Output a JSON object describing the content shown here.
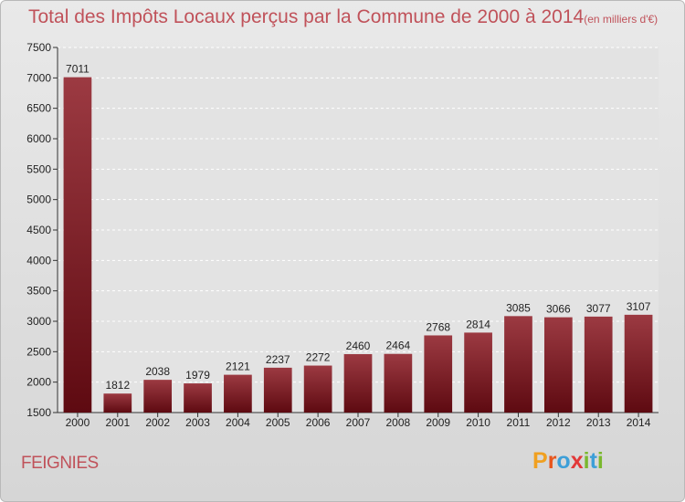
{
  "chart_data": {
    "type": "bar",
    "title": "Total des Impôts Locaux perçus par la Commune de 2000 à 2014",
    "title_unit": "(en milliers d'€)",
    "categories": [
      "2000",
      "2001",
      "2002",
      "2003",
      "2004",
      "2005",
      "2006",
      "2007",
      "2008",
      "2009",
      "2010",
      "2011",
      "2012",
      "2013",
      "2014"
    ],
    "values": [
      7011,
      1812,
      2038,
      1979,
      2121,
      2237,
      2272,
      2460,
      2464,
      2768,
      2814,
      3085,
      3066,
      3077,
      3107
    ],
    "value_labels": [
      "7011",
      "1812",
      "2038",
      "1979",
      "2121",
      "2237",
      "2272",
      "2460",
      "2464",
      "2768",
      "2814",
      "3085",
      "3066",
      "3077",
      "3107"
    ],
    "xlabel": "",
    "ylabel": "",
    "ylim": [
      1500,
      7500
    ],
    "yticks": [
      "1500",
      "2000",
      "2500",
      "3000",
      "3500",
      "4000",
      "4500",
      "5000",
      "5500",
      "6000",
      "6500",
      "7000",
      "7500"
    ],
    "grid": true,
    "bar_color": "#6e0f16",
    "bar_color_light": "#9c3a42"
  },
  "commune": "FEIGNIES",
  "brand": {
    "letters": [
      "P",
      "r",
      "o",
      "x",
      "i",
      "t",
      "i"
    ],
    "colors": [
      "#f0a020",
      "#e8551c",
      "#3d9fd8",
      "#e23838",
      "#7ab82e",
      "#3d9fd8",
      "#7ab82e"
    ]
  }
}
